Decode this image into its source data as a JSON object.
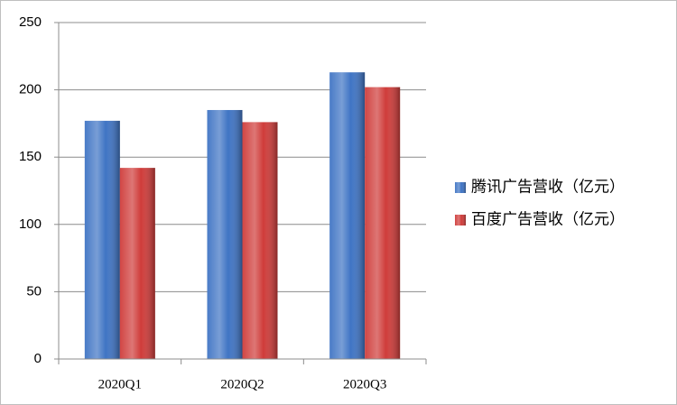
{
  "chart_data": {
    "type": "bar",
    "categories": [
      "2020Q1",
      "2020Q2",
      "2020Q3"
    ],
    "series": [
      {
        "name": "腾讯广告营收（亿元）",
        "color": "#3f74c4",
        "values": [
          177,
          185,
          213
        ]
      },
      {
        "name": "百度广告营收（亿元）",
        "color": "#cf3c3a",
        "values": [
          142,
          176,
          202
        ]
      }
    ],
    "ylim": [
      0,
      250
    ],
    "yticks": [
      0,
      50,
      100,
      150,
      200,
      250
    ],
    "grid": true,
    "legend": "right"
  }
}
